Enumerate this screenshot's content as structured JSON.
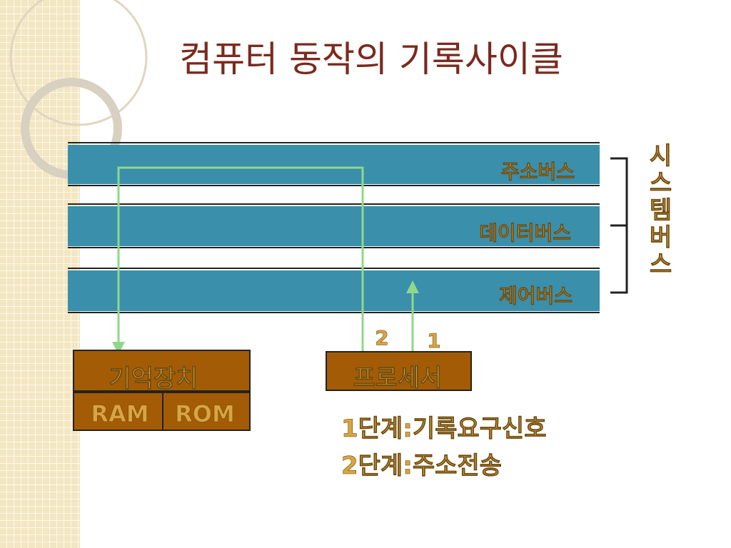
{
  "title": "컴퓨터 동작의 기록사이클",
  "buses": [
    "주소버스",
    "데이터버스",
    "제어버스"
  ],
  "system_bus": "시스템버스",
  "memory": {
    "label": "기억장치",
    "parts": [
      "RAM",
      "ROM"
    ]
  },
  "processor": "프로세서",
  "arrow_labels": [
    "2",
    "1"
  ],
  "steps": [
    "1단계:기록요구신호",
    "2단계:주소전송"
  ]
}
